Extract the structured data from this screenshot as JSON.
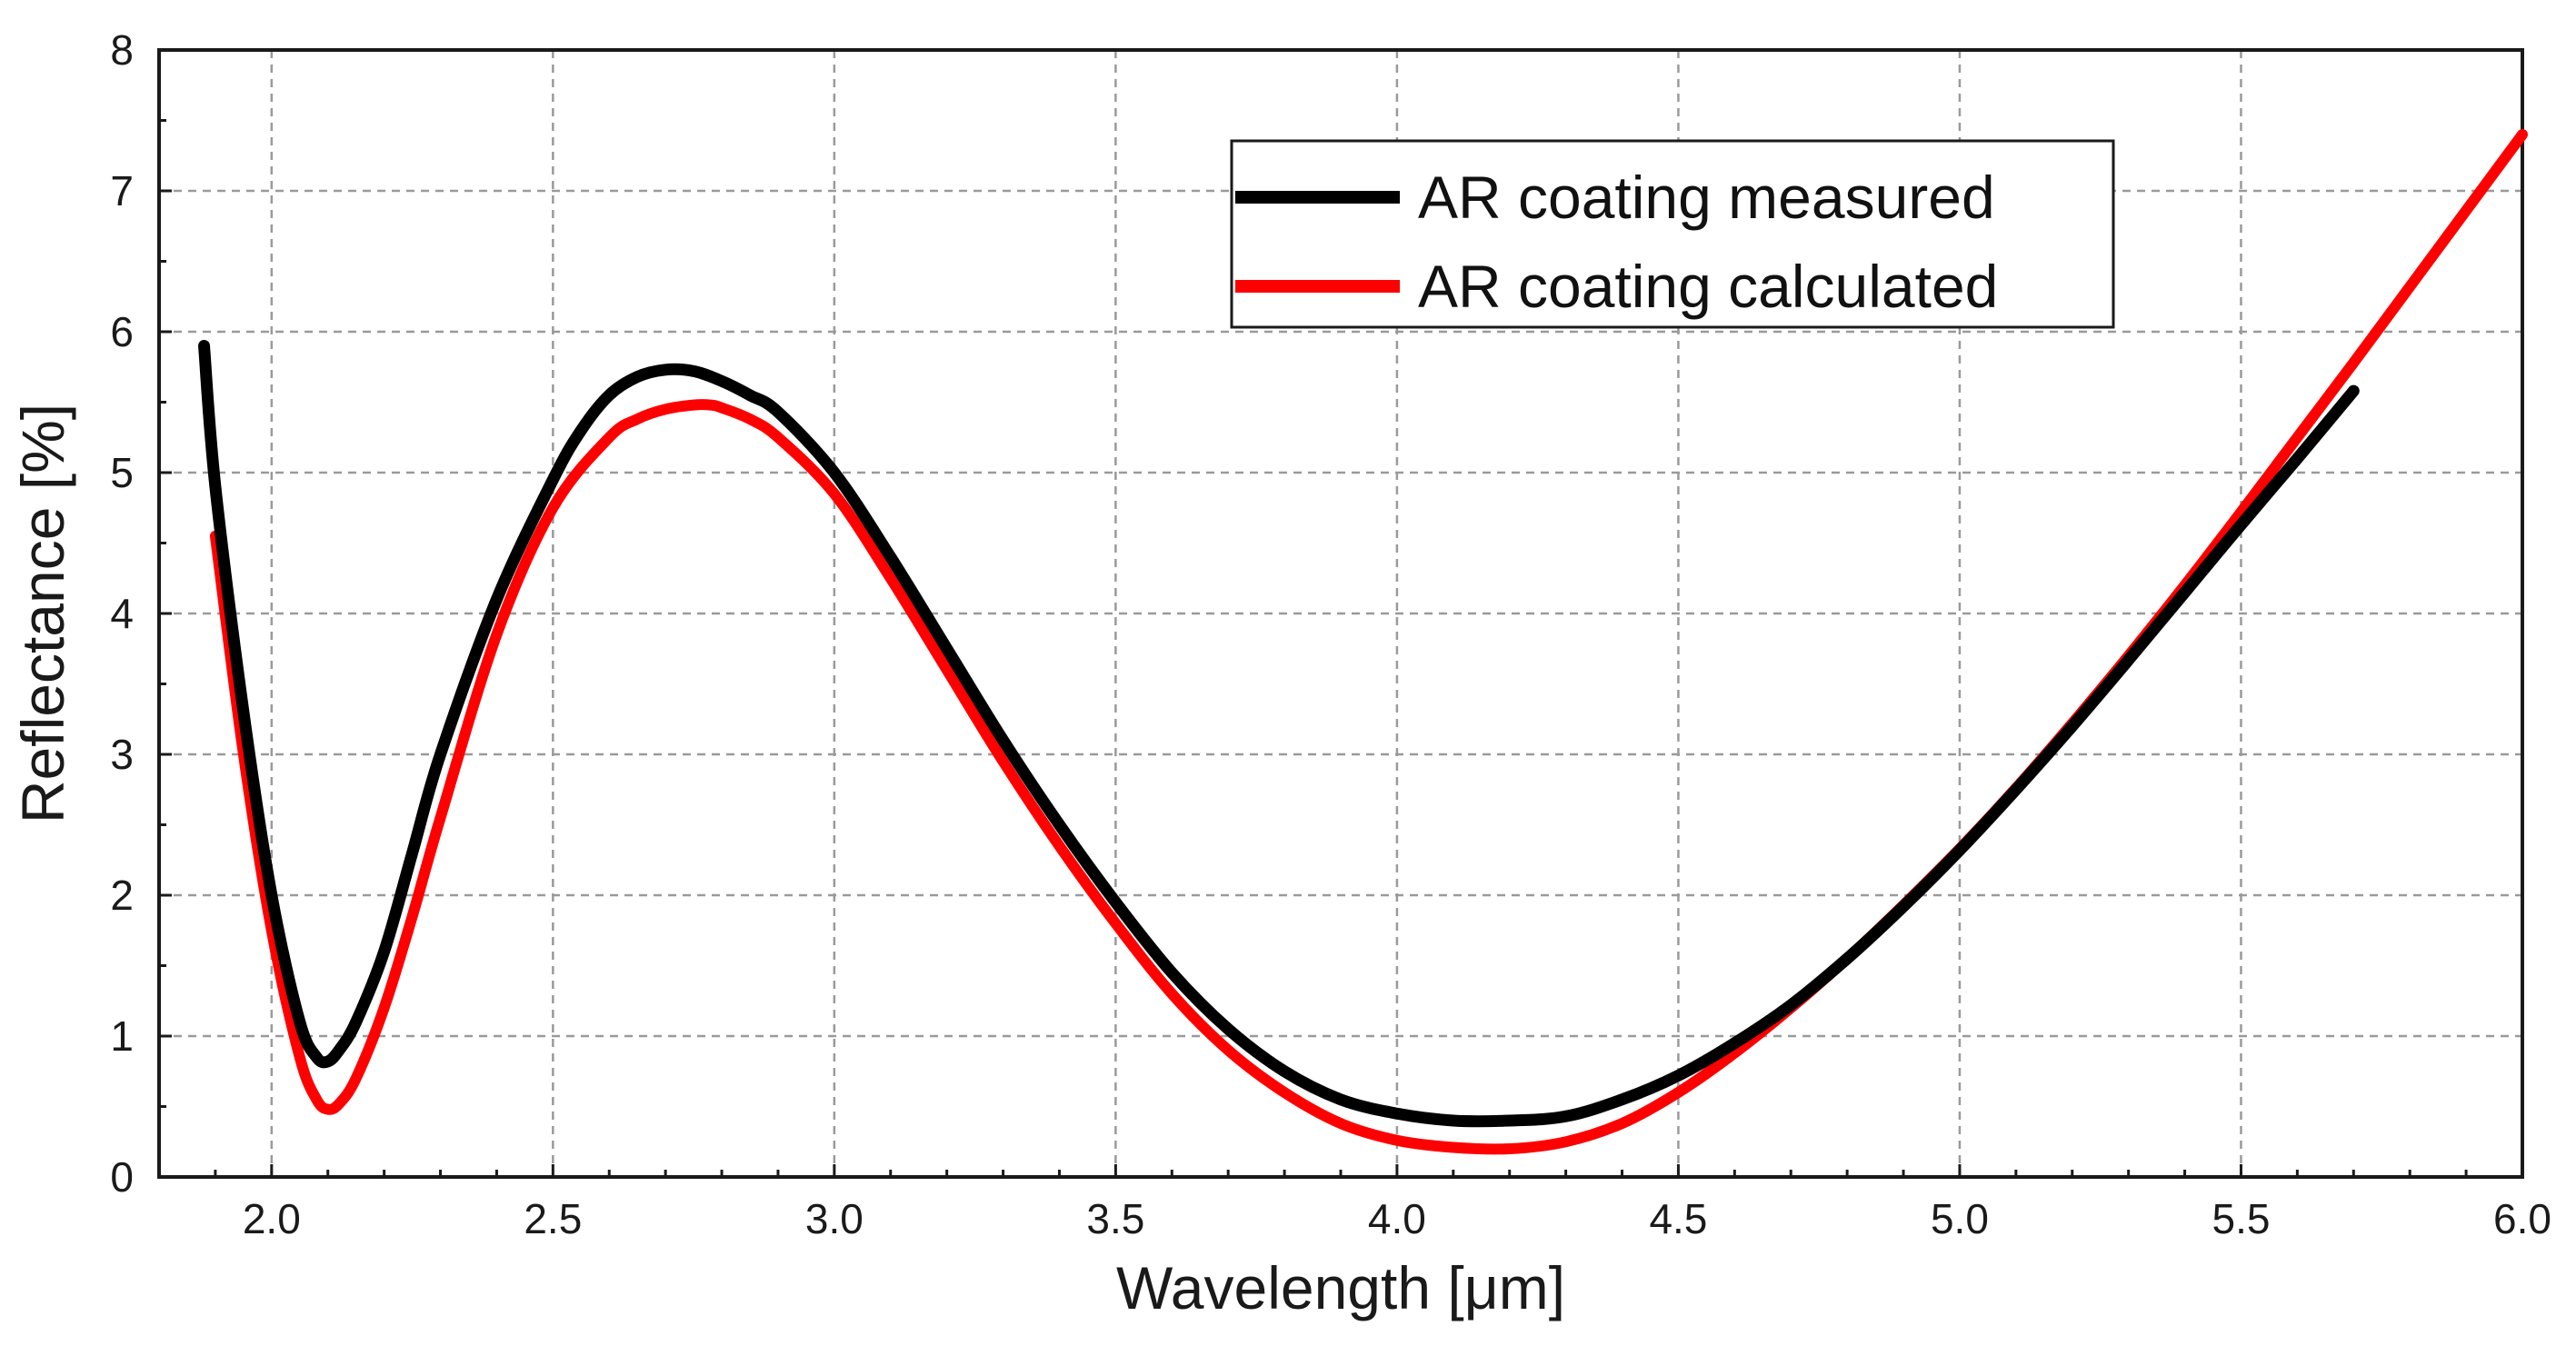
{
  "chart_data": {
    "type": "line",
    "title": "",
    "xlabel": "Wavelength [μm]",
    "ylabel": "Reflectance [%]",
    "xlim": [
      1.8,
      6.0
    ],
    "ylim": [
      0,
      8
    ],
    "xticks": [
      2.0,
      2.5,
      3.0,
      3.5,
      4.0,
      4.5,
      5.0,
      5.5,
      6.0
    ],
    "xtick_labels": [
      "2.0",
      "2.5",
      "3.0",
      "3.5",
      "4.0",
      "4.5",
      "5.0",
      "5.5",
      "6.0"
    ],
    "yticks": [
      0,
      1,
      2,
      3,
      4,
      5,
      6,
      7,
      8
    ],
    "ytick_labels": [
      "0",
      "1",
      "2",
      "3",
      "4",
      "5",
      "6",
      "7",
      "8"
    ],
    "grid": true,
    "legend_position": "top-right",
    "series": [
      {
        "name": "AR coating measured",
        "color": "#000000",
        "x": [
          1.88,
          1.9,
          1.95,
          2.0,
          2.05,
          2.08,
          2.1,
          2.12,
          2.15,
          2.2,
          2.25,
          2.3,
          2.4,
          2.5,
          2.55,
          2.6,
          2.65,
          2.7,
          2.75,
          2.8,
          2.85,
          2.9,
          3.0,
          3.1,
          3.2,
          3.3,
          3.4,
          3.5,
          3.6,
          3.7,
          3.8,
          3.9,
          4.0,
          4.1,
          4.2,
          4.3,
          4.4,
          4.5,
          4.6,
          4.7,
          4.8,
          4.9,
          5.0,
          5.1,
          5.2,
          5.3,
          5.4,
          5.5,
          5.6,
          5.7
        ],
        "y": [
          5.9,
          4.9,
          3.3,
          2.0,
          1.1,
          0.85,
          0.82,
          0.9,
          1.1,
          1.6,
          2.3,
          3.0,
          4.1,
          4.95,
          5.3,
          5.55,
          5.68,
          5.73,
          5.72,
          5.65,
          5.55,
          5.43,
          5.0,
          4.4,
          3.75,
          3.1,
          2.5,
          1.95,
          1.45,
          1.05,
          0.75,
          0.55,
          0.45,
          0.4,
          0.4,
          0.43,
          0.55,
          0.72,
          0.95,
          1.22,
          1.55,
          1.92,
          2.32,
          2.75,
          3.2,
          3.67,
          4.15,
          4.63,
          5.1,
          5.58
        ]
      },
      {
        "name": "AR coating calculated",
        "color": "#ff0000",
        "x": [
          1.9,
          1.95,
          2.0,
          2.05,
          2.08,
          2.1,
          2.12,
          2.15,
          2.2,
          2.25,
          2.3,
          2.4,
          2.5,
          2.6,
          2.65,
          2.7,
          2.75,
          2.78,
          2.8,
          2.85,
          2.9,
          3.0,
          3.1,
          3.2,
          3.3,
          3.4,
          3.5,
          3.6,
          3.7,
          3.8,
          3.9,
          4.0,
          4.1,
          4.2,
          4.3,
          4.4,
          4.5,
          4.6,
          4.7,
          4.8,
          4.9,
          5.0,
          5.1,
          5.2,
          5.3,
          5.4,
          5.5,
          5.6,
          5.7,
          5.8,
          5.9,
          6.0
        ],
        "y": [
          4.55,
          3.0,
          1.75,
          0.85,
          0.55,
          0.48,
          0.52,
          0.7,
          1.2,
          1.85,
          2.55,
          3.85,
          4.75,
          5.25,
          5.38,
          5.45,
          5.48,
          5.48,
          5.46,
          5.38,
          5.25,
          4.85,
          4.25,
          3.6,
          2.95,
          2.35,
          1.8,
          1.3,
          0.9,
          0.6,
          0.38,
          0.26,
          0.21,
          0.2,
          0.25,
          0.38,
          0.6,
          0.88,
          1.2,
          1.55,
          1.93,
          2.33,
          2.76,
          3.22,
          3.7,
          4.2,
          4.72,
          5.25,
          5.78,
          6.32,
          6.86,
          7.4
        ]
      }
    ]
  }
}
